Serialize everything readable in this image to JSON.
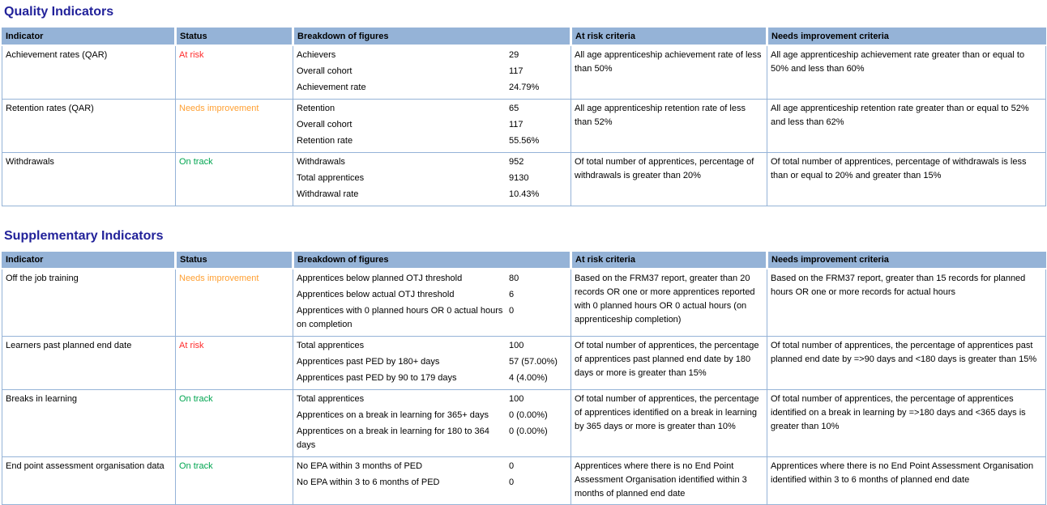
{
  "colors": {
    "title": "#22229a",
    "header_bg": "#95b3d7",
    "border": "#95b3d7",
    "at_risk": "#ff2a2a",
    "needs_improvement": "#ffa033",
    "on_track": "#00a550"
  },
  "columns": [
    "Indicator",
    "Status",
    "Breakdown of figures",
    "At risk criteria",
    "Needs improvement criteria"
  ],
  "sections": [
    {
      "title": "Quality Indicators",
      "rows": [
        {
          "indicator": "Achievement rates (QAR)",
          "status": "At risk",
          "status_type": "at_risk",
          "breakdown": [
            {
              "label": "Achievers",
              "value": "29"
            },
            {
              "label": "Overall cohort",
              "value": "117"
            },
            {
              "label": "Achievement rate",
              "value": "24.79%"
            }
          ],
          "at_risk_criteria": "All age apprenticeship achievement rate of less than 50%",
          "needs_improvement_criteria": "All age apprenticeship achievement rate greater than or equal to 50% and less than 60%"
        },
        {
          "indicator": "Retention rates (QAR)",
          "status": "Needs improvement",
          "status_type": "needs_improvement",
          "breakdown": [
            {
              "label": "Retention",
              "value": "65"
            },
            {
              "label": "Overall cohort",
              "value": "117"
            },
            {
              "label": "Retention rate",
              "value": "55.56%"
            }
          ],
          "at_risk_criteria": "All age apprenticeship retention rate of less than 52%",
          "needs_improvement_criteria": "All age apprenticeship retention rate greater than or equal to 52% and less than 62%"
        },
        {
          "indicator": "Withdrawals",
          "status": "On track",
          "status_type": "on_track",
          "breakdown": [
            {
              "label": "Withdrawals",
              "value": "952"
            },
            {
              "label": "Total apprentices",
              "value": "9130"
            },
            {
              "label": "Withdrawal rate",
              "value": "10.43%"
            }
          ],
          "at_risk_criteria": "Of total number of apprentices, percentage of withdrawals is greater than 20%",
          "needs_improvement_criteria": "Of total number of apprentices, percentage of withdrawals is less than or equal to 20% and greater than 15%"
        }
      ]
    },
    {
      "title": "Supplementary Indicators",
      "rows": [
        {
          "indicator": "Off the job training",
          "status": "Needs improvement",
          "status_type": "needs_improvement",
          "breakdown": [
            {
              "label": "Apprentices below planned OTJ threshold",
              "value": "80"
            },
            {
              "label": "Apprentices below actual OTJ threshold",
              "value": "6"
            },
            {
              "label": "Apprentices with 0 planned hours OR 0 actual hours on completion",
              "value": "0"
            }
          ],
          "at_risk_criteria": "Based on the FRM37 report, greater than 20 records OR one or more apprentices reported with 0 planned hours OR 0 actual hours (on apprenticeship completion)",
          "needs_improvement_criteria": "Based on the FRM37 report, greater than 15 records for planned hours OR one or more records for actual hours"
        },
        {
          "indicator": "Learners past planned end date",
          "status": "At risk",
          "status_type": "at_risk",
          "breakdown": [
            {
              "label": "Total apprentices",
              "value": "100"
            },
            {
              "label": "Apprentices past PED by 180+ days",
              "value": "57 (57.00%)"
            },
            {
              "label": "Apprentices past PED by 90 to 179 days",
              "value": "4 (4.00%)"
            }
          ],
          "at_risk_criteria": "Of total number of apprentices, the percentage of apprentices past planned end date by 180 days or more is greater than 15%",
          "needs_improvement_criteria": "Of total number of apprentices, the percentage of apprentices past planned end date by =>90 days and <180 days is greater than 15%"
        },
        {
          "indicator": "Breaks in learning",
          "status": "On track",
          "status_type": "on_track",
          "breakdown": [
            {
              "label": "Total apprentices",
              "value": "100"
            },
            {
              "label": "Apprentices on a break in learning for 365+ days",
              "value": "0 (0.00%)"
            },
            {
              "label": "Apprentices on a break in learning for 180 to 364 days",
              "value": "0 (0.00%)"
            }
          ],
          "at_risk_criteria": "Of total number of apprentices, the percentage of apprentices identified on a break in learning by 365 days or more is greater than 10%",
          "needs_improvement_criteria": "Of total number of apprentices, the percentage of apprentices identified on a break in learning by =>180 days and <365 days is greater than 10%"
        },
        {
          "indicator": "End point assessment organisation data",
          "status": "On track",
          "status_type": "on_track",
          "breakdown": [
            {
              "label": "No EPA within 3 months of PED",
              "value": "0"
            },
            {
              "label": "No EPA within 3 to 6 months of PED",
              "value": "0"
            }
          ],
          "at_risk_criteria": "Apprentices where there is no End Point Assessment Organisation identified within 3 months of planned end date",
          "needs_improvement_criteria": "Apprentices where there is no End Point Assessment Organisation identified within 3 to 6 months of planned end date"
        }
      ]
    }
  ]
}
